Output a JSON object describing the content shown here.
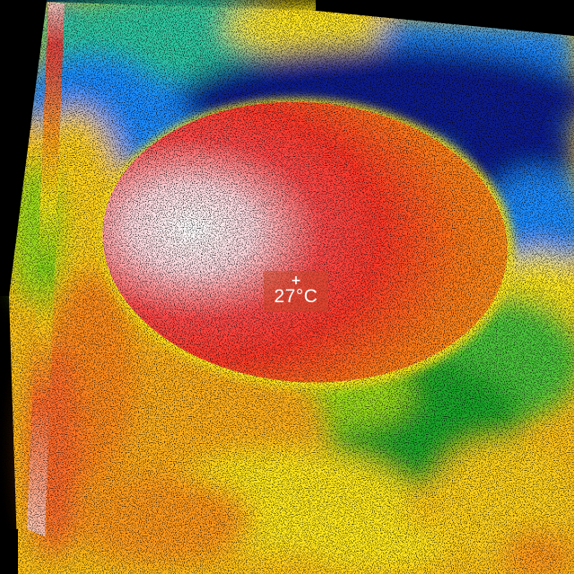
{
  "thermal": {
    "spot_temperature": "27°C",
    "crosshair_glyph": "+",
    "palette": [
      "#ffffff",
      "#ff2a2a",
      "#ff8c1a",
      "#ffe31a",
      "#9bdc1a",
      "#1aa52a",
      "#1a8cff",
      "#0a1a8c"
    ]
  }
}
